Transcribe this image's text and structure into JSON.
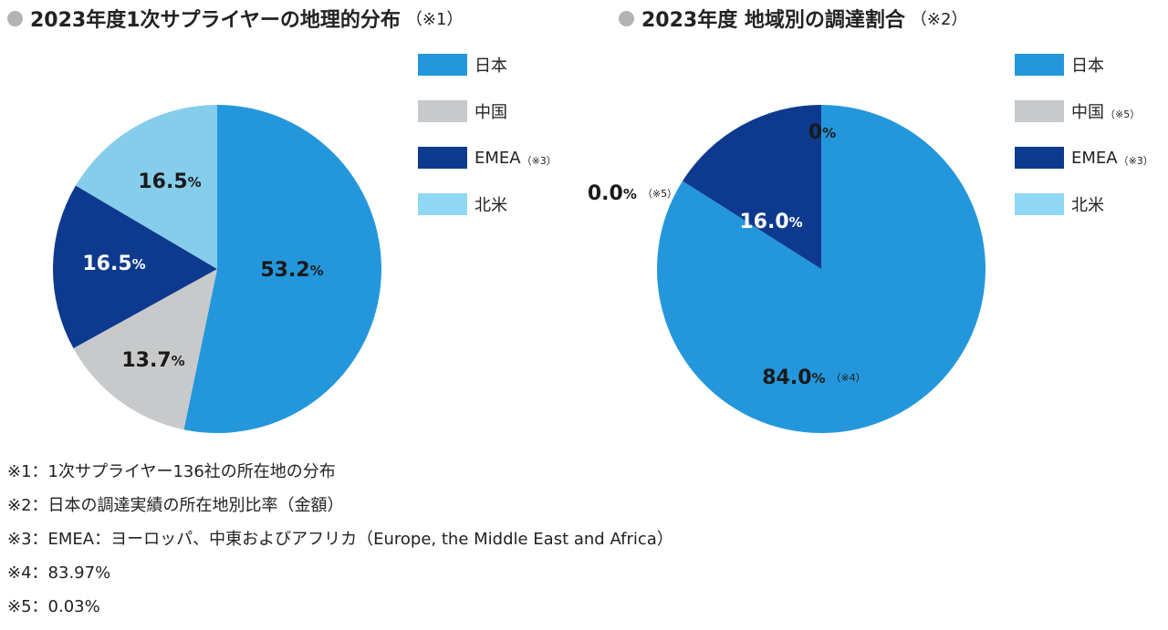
{
  "colors": {
    "japan": "#2497dc",
    "china": "#c8c9ca",
    "emea": "#0d3a8e",
    "north_america": "#85cdea",
    "legend_north_america": "#90d8f3",
    "title_dot": "#b3b3b3"
  },
  "left_chart": {
    "title": "2023年度1次サプライヤーの地理的分布",
    "title_note": "（※1）"
  },
  "right_chart": {
    "title": "2023年度 地域別の調達割合",
    "title_note": "（※2）"
  },
  "chart_data": [
    {
      "type": "pie",
      "title": "2023年度1次サプライヤーの地理的分布（※1）",
      "categories": [
        "日本",
        "中国",
        "EMEA",
        "北米"
      ],
      "values": [
        53.2,
        13.7,
        16.5,
        16.5
      ],
      "data_labels": [
        "53.2",
        "13.7",
        "16.5",
        "16.5"
      ],
      "unit": "%",
      "legend_position": "right",
      "legend": [
        {
          "label": "日本",
          "note": ""
        },
        {
          "label": "中国",
          "note": ""
        },
        {
          "label": "EMEA",
          "note": "（※3）"
        },
        {
          "label": "北米",
          "note": ""
        }
      ]
    },
    {
      "type": "pie",
      "title": "2023年度 地域別の調達割合（※2）",
      "categories": [
        "日本",
        "中国",
        "EMEA",
        "北米"
      ],
      "values": [
        84.0,
        0.0,
        16.0,
        0
      ],
      "data_labels": [
        "84.0",
        "0.0",
        "16.0",
        "0"
      ],
      "data_label_notes": [
        "（※4）",
        "（※5）",
        "",
        ""
      ],
      "unit": "%",
      "legend_position": "right",
      "legend": [
        {
          "label": "日本",
          "note": ""
        },
        {
          "label": "中国",
          "note": "（※5）"
        },
        {
          "label": "EMEA",
          "note": "（※3）"
        },
        {
          "label": "北米",
          "note": ""
        }
      ]
    }
  ],
  "footnotes": [
    "※1：1次サプライヤー136社の所在地の分布",
    "※2：日本の調達実績の所在地別比率（金額）",
    "※3：EMEA：ヨーロッパ、中東およびアフリカ（Europe, the Middle East and Africa）",
    "※4：83.97%",
    "※5：0.03%"
  ]
}
